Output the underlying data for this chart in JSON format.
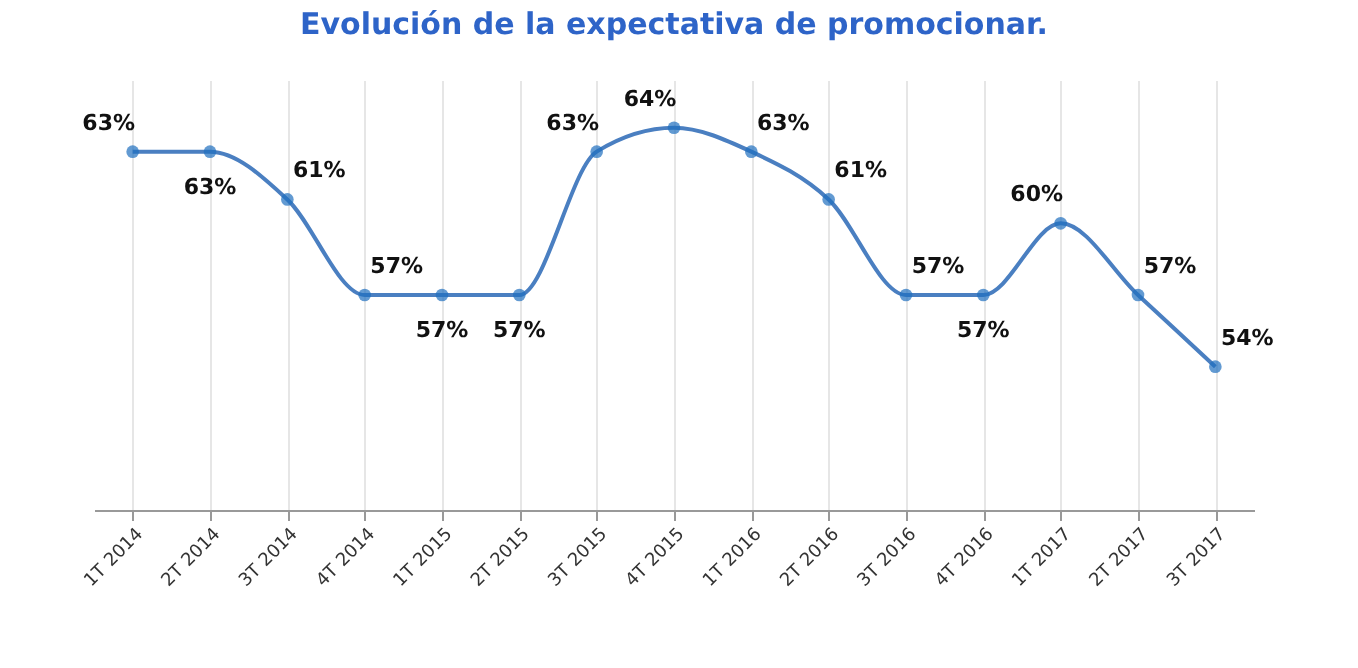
{
  "chart_data": {
    "type": "line",
    "title": "Evolución de la expectativa de promocionar.",
    "categories": [
      "1T 2014",
      "2T 2014",
      "3T 2014",
      "4T 2014",
      "1T 2015",
      "2T 2015",
      "3T 2015",
      "4T 2015",
      "1T 2016",
      "2T 2016",
      "3T 2016",
      "4T 2016",
      "1T 2017",
      "2T 2017",
      "3T 2017"
    ],
    "series": [
      {
        "color": "#4a7fc1",
        "values": [
          63,
          63,
          61,
          57,
          57,
          57,
          63,
          64,
          63,
          61,
          57,
          57,
          60,
          57,
          54
        ],
        "value_labels": [
          "63%",
          "63%",
          "61%",
          "57%",
          "57%",
          "57%",
          "63%",
          "64%",
          "63%",
          "61%",
          "57%",
          "57%",
          "60%",
          "57%",
          "54%"
        ]
      }
    ],
    "ylim": [
      48,
      66
    ],
    "tick_labels": "x",
    "grid": "x",
    "marker": "circle",
    "legend": false
  }
}
